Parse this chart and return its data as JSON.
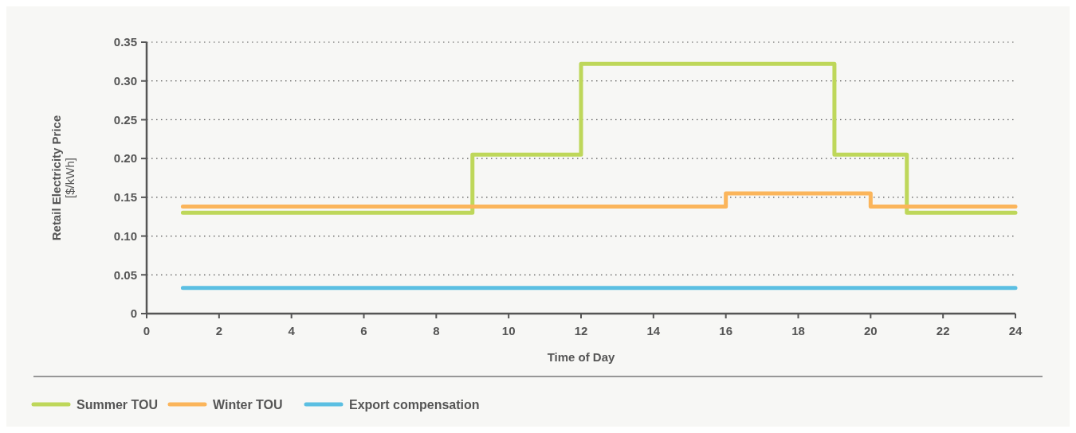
{
  "chart_data": {
    "type": "step",
    "xlabel": "Time of Day",
    "ylabel": "Retail Electricity Price [$/kWh]",
    "xlim": [
      0,
      24
    ],
    "xticks": [
      0,
      2,
      4,
      6,
      8,
      10,
      12,
      14,
      16,
      18,
      20,
      22,
      24
    ],
    "ylim": [
      0,
      0.35
    ],
    "yticks": [
      0,
      0.05,
      {
        "value": 0.1,
        "label": "0.10"
      },
      0.15,
      {
        "value": 0.2,
        "label": "0.20"
      },
      0.25,
      {
        "value": 0.3,
        "label": "0.30"
      },
      0.35
    ],
    "grid": "y",
    "legend": "bottom",
    "line_style": "solid",
    "series": [
      {
        "name": "Summer TOU",
        "color": "#bed75a",
        "x": [
          1,
          9,
          12,
          19,
          21,
          24
        ],
        "values": [
          0.13,
          0.205,
          0.322,
          0.205,
          0.13,
          0.13
        ]
      },
      {
        "name": "Winter TOU",
        "color": "#fbb55b",
        "x": [
          1,
          16,
          20,
          24
        ],
        "values": [
          0.138,
          0.155,
          0.138,
          0.138
        ]
      },
      {
        "name": "Export compensation",
        "color": "#5bbfe2",
        "x": [
          1,
          24
        ],
        "values": [
          0.033,
          0.033
        ]
      }
    ]
  }
}
